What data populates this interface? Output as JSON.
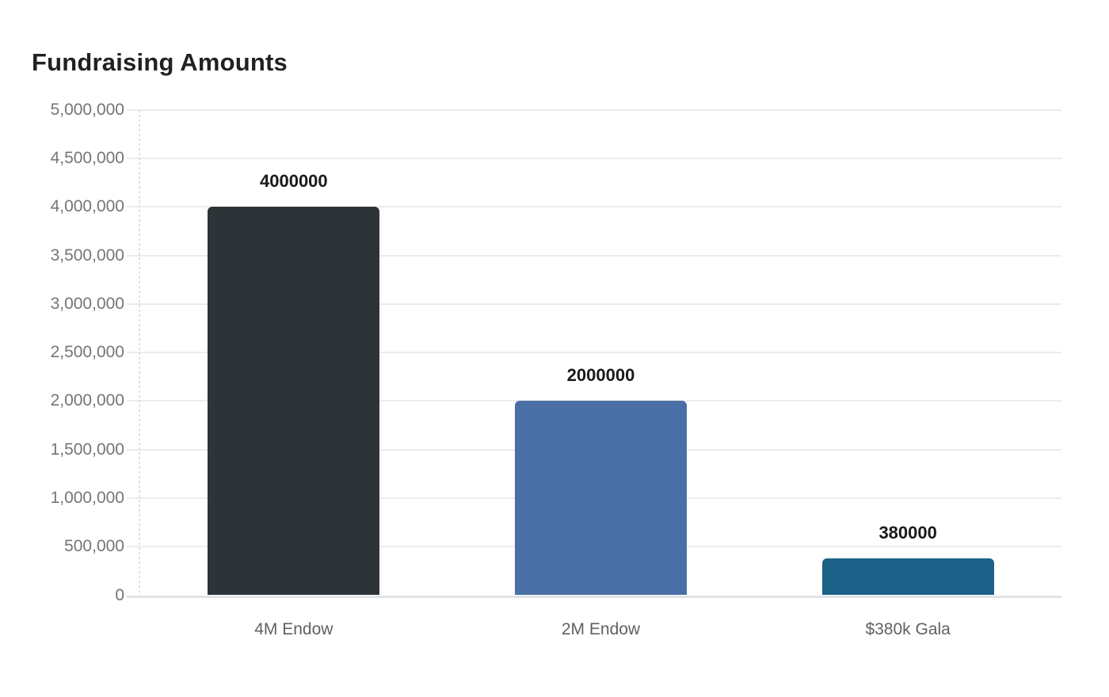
{
  "chart_data": {
    "type": "bar",
    "title": "Fundraising Amounts",
    "categories": [
      "4M Endow",
      "2M Endow",
      "$380k Gala"
    ],
    "values": [
      4000000,
      2000000,
      380000
    ],
    "value_labels": [
      "4000000",
      "2000000",
      "380000"
    ],
    "bar_colors": [
      "#2d3438",
      "#4a6fa7",
      "#1c6187"
    ],
    "xlabel": "",
    "ylabel": "",
    "ylim": [
      0,
      5000000
    ],
    "yticks": [
      0,
      500000,
      1000000,
      1500000,
      2000000,
      2500000,
      3000000,
      3500000,
      4000000,
      4500000,
      5000000
    ],
    "ytick_labels": [
      "0",
      "500,000",
      "1,000,000",
      "1,500,000",
      "2,000,000",
      "2,500,000",
      "3,000,000",
      "3,500,000",
      "4,000,000",
      "4,500,000",
      "5,000,000"
    ],
    "grid": "horizontal",
    "legend": "none",
    "colors": {
      "title": "#212121",
      "ytick_label": "#757575",
      "category_label": "#616161",
      "value_label": "#1a1a1a",
      "gridline": "#ececec",
      "baseline": "#e2e3e7",
      "axis_line": "#e0e0e0",
      "background": "#ffffff"
    }
  }
}
